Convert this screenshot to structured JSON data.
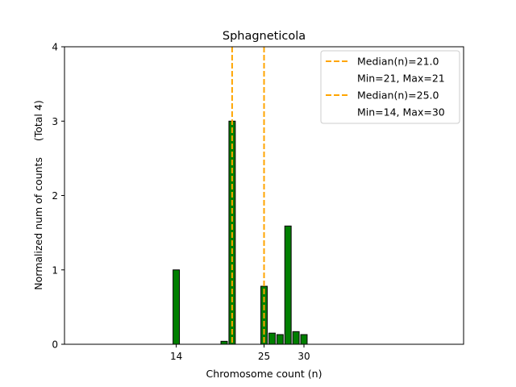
{
  "chart_data": {
    "type": "bar",
    "title": "Sphagneticola",
    "xlabel": "Chromosome count (n)",
    "ylabel": "Normalized num of counts     (Total 4)",
    "xlim": [
      0,
      50
    ],
    "ylim": [
      0,
      4
    ],
    "xticks": [
      14,
      25,
      30
    ],
    "yticks": [
      0,
      1,
      2,
      3,
      4
    ],
    "bar_color": "#007f00",
    "edge_color": "#000000",
    "bars": [
      {
        "x": 14,
        "value": 1.0
      },
      {
        "x": 20,
        "value": 0.04
      },
      {
        "x": 21,
        "value": 3.0
      },
      {
        "x": 25,
        "value": 0.78
      },
      {
        "x": 26,
        "value": 0.15
      },
      {
        "x": 27,
        "value": 0.13
      },
      {
        "x": 28,
        "value": 1.59
      },
      {
        "x": 29,
        "value": 0.17
      },
      {
        "x": 30,
        "value": 0.13
      }
    ],
    "medians": [
      {
        "x": 21.0,
        "color": "#ffa500",
        "label": "Median(n)=21.0",
        "range_label": "Min=21, Max=21"
      },
      {
        "x": 25.0,
        "color": "#ffa500",
        "label": "Median(n)=25.0",
        "range_label": "Min=14, Max=30"
      }
    ],
    "legend_position": "top-right"
  }
}
